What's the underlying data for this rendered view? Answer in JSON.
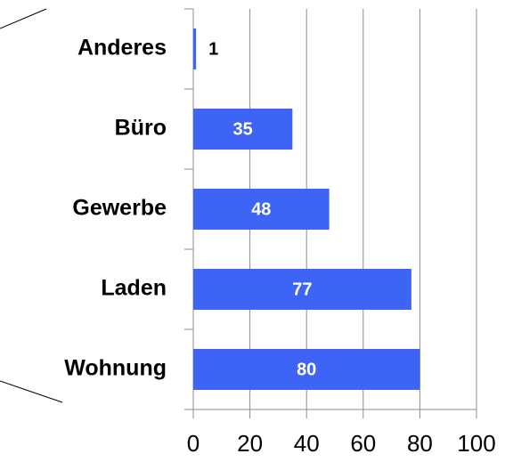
{
  "chart_data": {
    "type": "barh",
    "categories": [
      "Anderes",
      "Büro",
      "Gewerbe",
      "Laden",
      "Wohnung"
    ],
    "values": [
      1,
      35,
      48,
      77,
      80
    ],
    "color": "#3d64f5",
    "xlim": [
      0,
      100
    ],
    "xticks": [
      0,
      20,
      40,
      60,
      80,
      100
    ],
    "grid": true
  }
}
